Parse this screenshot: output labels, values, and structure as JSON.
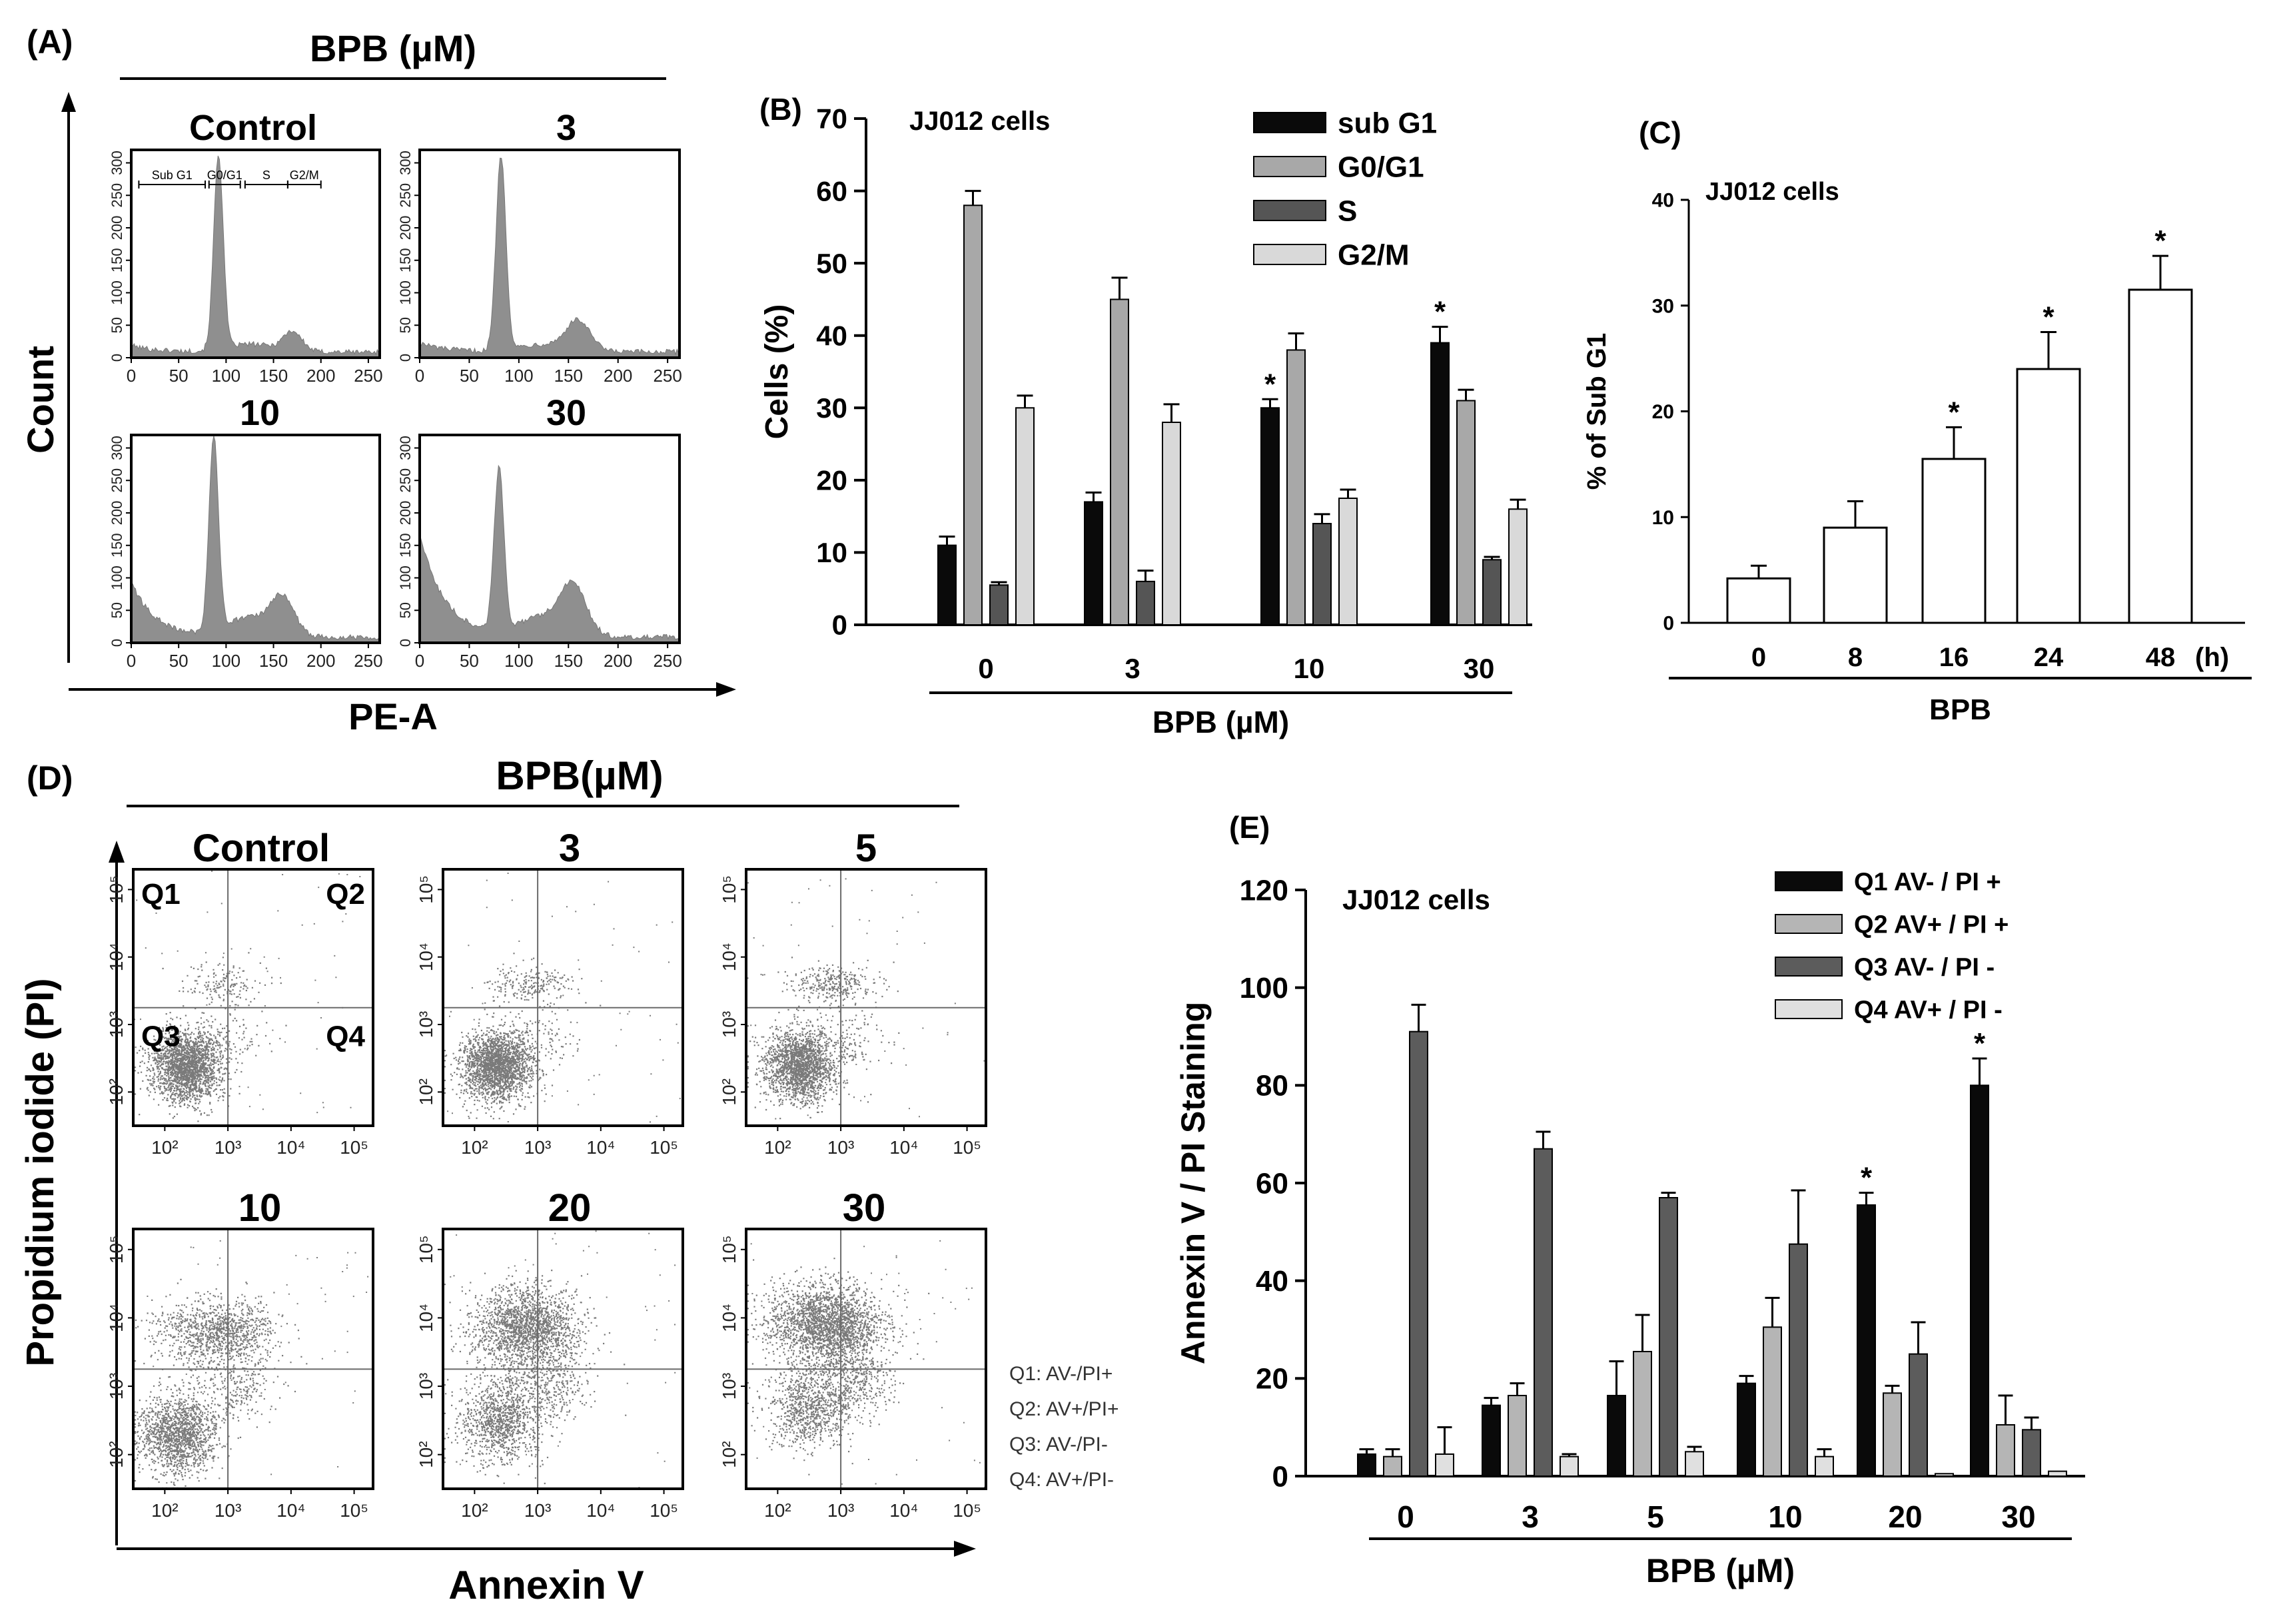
{
  "panelA": {
    "label": "(A)",
    "header": "BPB (µM)",
    "ylabel": "Count",
    "xlabel": "PE-A",
    "plots": [
      {
        "title": "Control",
        "peaks": [
          [
            92,
            300,
            5
          ],
          [
            170,
            30,
            10
          ]
        ],
        "debris": 10,
        "gate_labels": [
          "Sub G1",
          "G0/G1",
          "S",
          "G2/M"
        ]
      },
      {
        "title": "3",
        "peaks": [
          [
            82,
            300,
            5
          ],
          [
            160,
            45,
            12
          ]
        ],
        "debris": 14
      },
      {
        "title": "10",
        "peaks": [
          [
            87,
            300,
            5
          ],
          [
            160,
            55,
            12
          ]
        ],
        "debris": 85
      },
      {
        "title": "30",
        "peaks": [
          [
            80,
            250,
            5
          ],
          [
            155,
            70,
            13
          ]
        ],
        "debris": 160
      }
    ],
    "x_ticks": [
      "0",
      "50",
      "100",
      "150",
      "200",
      "250"
    ],
    "y_ticks": [
      "0",
      "50",
      "100",
      "150",
      "200",
      "250",
      "300"
    ]
  },
  "chart_data": [
    {
      "panel": "(B)",
      "type": "bar",
      "title": "JJ012 cells",
      "xlabel": "BPB (µM)",
      "ylabel": "Cells (%)",
      "ylim": [
        0,
        70
      ],
      "yticks": [
        0,
        10,
        20,
        30,
        40,
        50,
        60,
        70
      ],
      "categories": [
        "0",
        "3",
        "10",
        "30"
      ],
      "series": [
        {
          "name": "sub G1",
          "color": "#0a0a0a",
          "values": [
            11,
            17,
            30,
            39
          ],
          "errors": [
            1.2,
            1.3,
            1.2,
            2.2
          ],
          "sig": [
            false,
            false,
            true,
            true
          ]
        },
        {
          "name": "G0/G1",
          "color": "#a8a8a8",
          "values": [
            58,
            45,
            38,
            31
          ],
          "errors": [
            2,
            3,
            2.3,
            1.5
          ],
          "sig": [
            false,
            false,
            false,
            false
          ]
        },
        {
          "name": "S",
          "color": "#555555",
          "values": [
            5.5,
            6,
            14,
            9
          ],
          "errors": [
            0.4,
            1.5,
            1.3,
            0.4
          ],
          "sig": [
            false,
            false,
            false,
            false
          ]
        },
        {
          "name": "G2/M",
          "color": "#d9d9d9",
          "values": [
            30,
            28,
            17.5,
            16
          ],
          "errors": [
            1.7,
            2.5,
            1.2,
            1.3
          ],
          "sig": [
            false,
            false,
            false,
            false
          ]
        }
      ]
    },
    {
      "panel": "(C)",
      "type": "bar",
      "title": "JJ012 cells",
      "xlabel": "BPB",
      "ylabel": "% of Sub G1",
      "x_unit": "(h)",
      "ylim": [
        0,
        40
      ],
      "yticks": [
        0,
        10,
        20,
        30,
        40
      ],
      "categories": [
        "0",
        "8",
        "16",
        "24",
        "48"
      ],
      "series": [
        {
          "name": "% of Sub G1",
          "color": "#ffffff",
          "values": [
            4.2,
            9,
            15.5,
            24,
            31.5
          ],
          "errors": [
            1.2,
            2.5,
            3,
            3.5,
            3.2
          ],
          "sig": [
            false,
            false,
            true,
            true,
            true
          ]
        }
      ]
    },
    {
      "panel": "(E)",
      "type": "bar",
      "title": "JJ012 cells",
      "xlabel": "BPB (µM)",
      "ylabel": "Annexin V / PI Staining",
      "ylim": [
        0,
        120
      ],
      "yticks": [
        0,
        20,
        40,
        60,
        80,
        100,
        120
      ],
      "categories": [
        "0",
        "3",
        "5",
        "10",
        "20",
        "30"
      ],
      "series": [
        {
          "name": "Q1 AV- / PI +",
          "color": "#0a0a0a",
          "values": [
            4.5,
            14.5,
            16.5,
            19,
            55.5,
            80
          ],
          "errors": [
            1,
            1.5,
            7,
            1.5,
            2.5,
            5.5
          ],
          "sig": [
            false,
            false,
            false,
            false,
            true,
            true
          ]
        },
        {
          "name": "Q2 AV+ / PI +",
          "color": "#b5b5b5",
          "values": [
            4,
            16.5,
            25.5,
            30.5,
            17,
            10.5
          ],
          "errors": [
            1.5,
            2.5,
            7.5,
            6,
            1.5,
            6
          ],
          "sig": [
            false,
            false,
            false,
            false,
            false,
            false
          ]
        },
        {
          "name": "Q3 AV- / PI -",
          "color": "#5c5c5c",
          "values": [
            91,
            67,
            57,
            47.5,
            25,
            9.5
          ],
          "errors": [
            5.5,
            3.5,
            1,
            11,
            6.5,
            2.5
          ],
          "sig": [
            false,
            false,
            false,
            false,
            false,
            false
          ]
        },
        {
          "name": "Q4 AV+ / PI -",
          "color": "#e0e0e0",
          "values": [
            4.5,
            4,
            5,
            4,
            0.5,
            1
          ],
          "errors": [
            5.5,
            0.5,
            1,
            1.5,
            0,
            0
          ],
          "sig": [
            false,
            false,
            false,
            false,
            false,
            false
          ]
        }
      ]
    }
  ],
  "panelD": {
    "label": "(D)",
    "header": "BPB(µM)",
    "ylabel": "Propidium iodide (PI)",
    "xlabel": "Annexin V",
    "plots": [
      {
        "title": "Control",
        "clusters": [
          [
            2.35,
            2.4,
            0.28,
            0.26,
            2200
          ],
          [
            2.9,
            3.6,
            0.35,
            0.15,
            160
          ],
          [
            3.1,
            2.8,
            0.3,
            0.2,
            80
          ]
        ],
        "quadrant_labels": [
          "Q1",
          "Q2",
          "Q3",
          "Q4"
        ]
      },
      {
        "title": "3",
        "clusters": [
          [
            2.35,
            2.4,
            0.28,
            0.26,
            2200
          ],
          [
            2.9,
            3.6,
            0.35,
            0.15,
            230
          ],
          [
            3.1,
            2.8,
            0.3,
            0.2,
            100
          ]
        ]
      },
      {
        "title": "5",
        "clusters": [
          [
            2.35,
            2.4,
            0.28,
            0.26,
            2000
          ],
          [
            2.9,
            3.6,
            0.35,
            0.15,
            320
          ],
          [
            3.1,
            2.8,
            0.3,
            0.2,
            120
          ]
        ]
      },
      {
        "title": "10",
        "clusters": [
          [
            2.2,
            2.3,
            0.3,
            0.28,
            1500
          ],
          [
            2.8,
            3.8,
            0.45,
            0.25,
            1100
          ],
          [
            3.1,
            3.0,
            0.35,
            0.25,
            250
          ]
        ]
      },
      {
        "title": "20",
        "clusters": [
          [
            2.4,
            2.5,
            0.32,
            0.3,
            1100
          ],
          [
            2.8,
            3.85,
            0.42,
            0.3,
            1900
          ],
          [
            3.1,
            3.0,
            0.35,
            0.25,
            350
          ]
        ]
      },
      {
        "title": "30",
        "clusters": [
          [
            2.5,
            2.7,
            0.33,
            0.3,
            900
          ],
          [
            2.75,
            3.9,
            0.45,
            0.3,
            2300
          ],
          [
            3.2,
            3.1,
            0.35,
            0.25,
            400
          ]
        ]
      }
    ],
    "x_ticks": [
      "10²",
      "10³",
      "10⁴",
      "10⁵"
    ],
    "y_ticks": [
      "10²",
      "10³",
      "10⁴",
      "10⁵"
    ],
    "quadrant_legend": [
      "Q1: AV-/PI+",
      "Q2: AV+/PI+",
      "Q3: AV-/PI-",
      "Q4: AV+/PI-"
    ]
  }
}
